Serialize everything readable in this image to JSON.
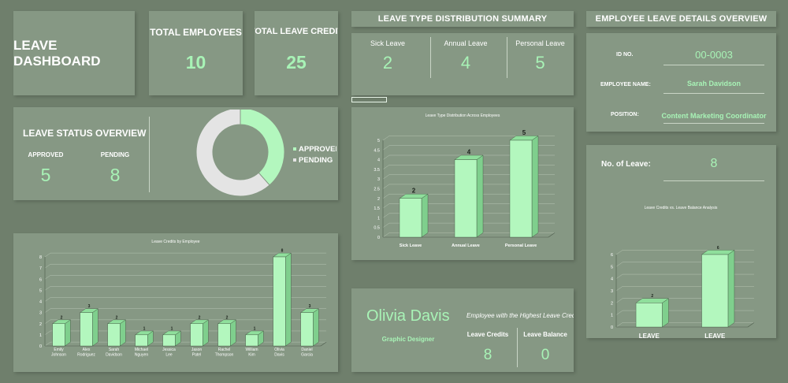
{
  "dashboard_title": "LEAVE DASHBOARD",
  "kpis": {
    "total_employees_label": "TOTAL EMPLOYEES",
    "total_employees_value": "10",
    "total_leave_credit_label": "TOTAL LEAVE CREDIT",
    "total_leave_credit_value": "25"
  },
  "leave_type_summary": {
    "header": "LEAVE TYPE DISTRIBUTION SUMMARY",
    "items": [
      {
        "label": "Sick Leave",
        "value": "2"
      },
      {
        "label": "Annual Leave",
        "value": "4"
      },
      {
        "label": "Personal Leave",
        "value": "5"
      }
    ]
  },
  "employee_details": {
    "header": "EMPLOYEE LEAVE DETAILS OVERVIEW",
    "id_label": "ID NO.",
    "id_value": "00-0003",
    "name_label": "EMPLOYEE NAME:",
    "name_value": "Sarah Davidson",
    "position_label": "POSITION:",
    "position_value": "Content Marketing Coordinator",
    "leave_count_label": "No. of Leave:",
    "leave_count_value": "8"
  },
  "status_overview": {
    "title": "LEAVE STATUS OVERVIEW",
    "approved_label": "APPROVED",
    "approved_value": "5",
    "pending_label": "PENDING",
    "pending_value": "8",
    "legend_approved": "APPROVED",
    "legend_pending": "PENDING"
  },
  "top_employee": {
    "name": "Olivia Davis",
    "role": "Graphic Designer",
    "caption": "Employee with the Highest Leave Credit",
    "credits_label": "Leave Credits",
    "credits_value": "8",
    "balance_label": "Leave Balance",
    "balance_value": "0"
  },
  "colors": {
    "background": "#6f7f6c",
    "card": "#869884",
    "accent_green": "#a8f3b6",
    "bar_fill": "#b3f7be",
    "pending_grey": "#e4e4e4"
  },
  "chart_data": [
    {
      "id": "status_donut",
      "type": "pie",
      "categories": [
        "APPROVED",
        "PENDING"
      ],
      "values": [
        5,
        8
      ],
      "colors": [
        "#b3f7be",
        "#e4e4e4"
      ],
      "legend": "right"
    },
    {
      "id": "credits_by_employee",
      "type": "bar",
      "title": "Leave Credits by Employee",
      "categories": [
        "Emily Johnson",
        "Alex Rodriguez",
        "Sarah Davidson",
        "Michael Nguyen",
        "Jessica Lee",
        "Jason Patel",
        "Rachel Thompson",
        "William Kim",
        "Olivia Davis",
        "Daniel Garcia"
      ],
      "values": [
        2,
        3,
        2,
        1,
        1,
        2,
        2,
        1,
        8,
        3
      ],
      "ylim": [
        0,
        8
      ],
      "yticks": [
        0,
        1,
        2,
        3,
        4,
        5,
        6,
        7,
        8
      ],
      "grid": true
    },
    {
      "id": "leave_type_distribution",
      "type": "bar",
      "title": "Leave Type Distribution Across Employees",
      "categories": [
        "Sick Leave",
        "Annual Leave",
        "Personal Leave"
      ],
      "values": [
        2,
        4,
        5
      ],
      "ylim": [
        0,
        5
      ],
      "yticks": [
        0,
        0.5,
        1,
        1.5,
        2,
        2.5,
        3,
        3.5,
        4,
        4.5,
        5
      ],
      "ytick_labels": [
        "0",
        "0.5",
        "1",
        "1.5",
        "2",
        "2.5",
        "3",
        "3.5",
        "4",
        "4.5",
        "5"
      ],
      "grid": true
    },
    {
      "id": "credits_vs_balance",
      "type": "bar",
      "title": "Leave Credits vs. Leave Balance Analysis",
      "categories": [
        "LEAVE CREDITED:",
        "LEAVE BALANCE:"
      ],
      "values": [
        2,
        6
      ],
      "ylim": [
        0,
        6
      ],
      "yticks": [
        0,
        1,
        2,
        3,
        4,
        5,
        6
      ],
      "grid": true
    }
  ]
}
